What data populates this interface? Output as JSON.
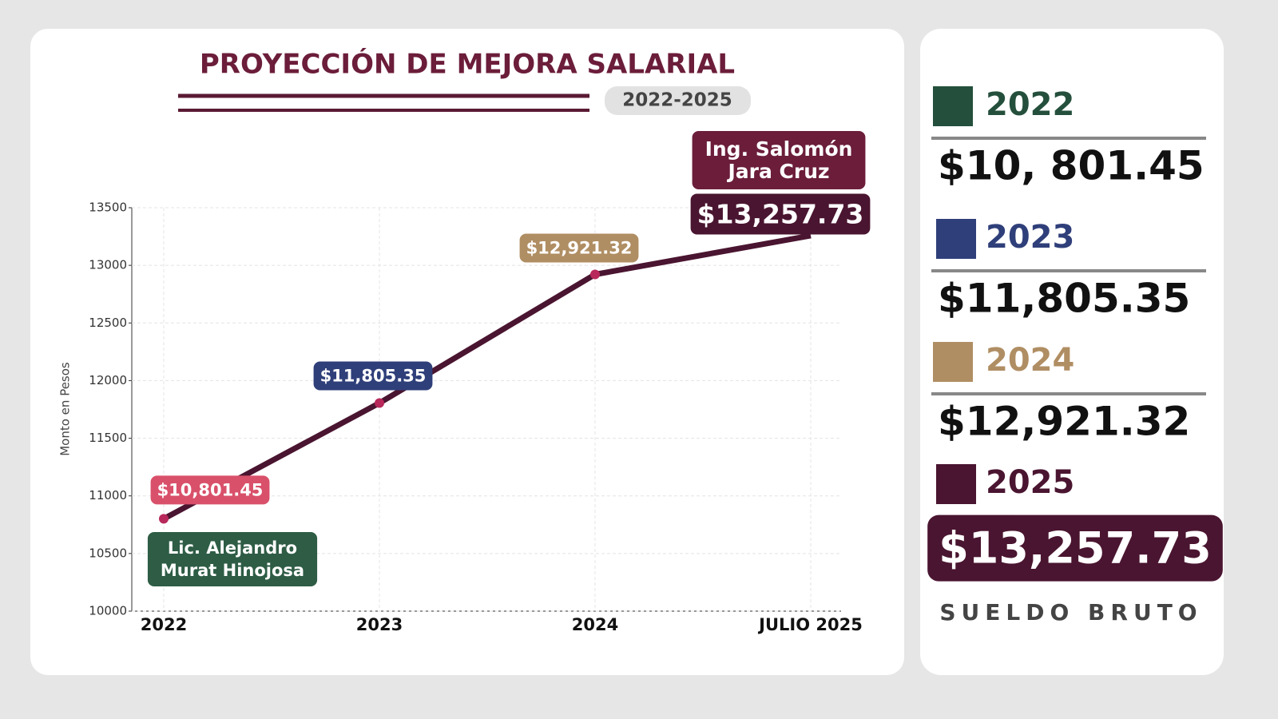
{
  "chart_data": {
    "type": "line",
    "title": "PROYECCIÓN DE MEJORA SALARIAL",
    "subtitle": "2022-2025",
    "y_label": "Monto en Pesos",
    "categories": [
      "2022",
      "2023",
      "2024",
      "JULIO 2025"
    ],
    "values": [
      10801.45,
      11805.35,
      12921.32,
      13257.73
    ],
    "value_labels": [
      "$10,801.45",
      "$11,805.35",
      "$12,921.32",
      "$13,257.73"
    ],
    "label_colors": [
      "#d9506a",
      "#2f3f7a",
      "#b08e63",
      "#4a1530"
    ],
    "color": "#4a1530",
    "marker_color": "#b8285a",
    "ylim": [
      10000,
      13500
    ],
    "yticks": [
      10000,
      10500,
      11000,
      11500,
      12000,
      12500,
      13000,
      13500
    ],
    "grid": true,
    "annotations": [
      {
        "lines": [
          "Lic. Alejandro",
          "Murat Hinojosa"
        ],
        "color": "#2e5c45"
      },
      {
        "lines": [
          "Ing. Salomón",
          "Jara Cruz"
        ],
        "color": "#6b1d3a"
      }
    ]
  },
  "side_panel": {
    "items": [
      {
        "year": "2022",
        "amount": "$10, 801.45",
        "color": "#244f3c"
      },
      {
        "year": "2023",
        "amount": "$11,805.35",
        "color": "#2f3f7a"
      },
      {
        "year": "2024",
        "amount": "$12,921.32",
        "color": "#b08e63"
      },
      {
        "year": "2025",
        "amount": "$13,257.73",
        "color": "#4a1530"
      }
    ],
    "footer": "SUELDO BRUTO"
  }
}
